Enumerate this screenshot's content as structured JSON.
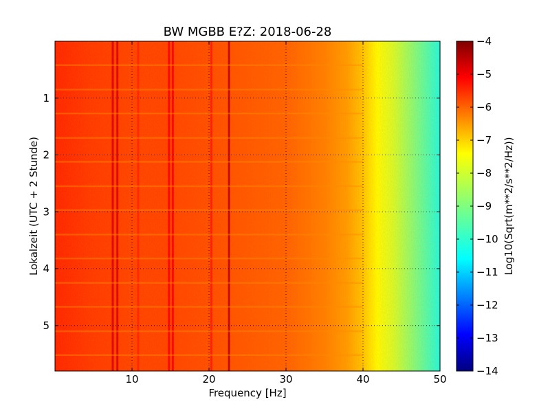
{
  "chart_data": {
    "type": "heatmap",
    "title": "BW MGBB E?Z: 2018-06-28",
    "xlabel": "Frequency [Hz]",
    "ylabel": "Lokalzeit (UTC + 2 Stunde)",
    "xlim": [
      0,
      50
    ],
    "ylim": [
      0,
      5.8
    ],
    "y_inverted": true,
    "x_ticks": [
      10,
      20,
      30,
      40,
      50
    ],
    "y_ticks": [
      1,
      2,
      3,
      4,
      5
    ],
    "grid": true,
    "colormap": "jet",
    "colorbar": {
      "label": "Log10(Sqrt(m**2/s**2/Hz))",
      "range": [
        -14,
        -4
      ],
      "ticks": [
        -4,
        -5,
        -6,
        -7,
        -8,
        -9,
        -10,
        -11,
        -12,
        -13,
        -14
      ]
    },
    "spectrum_profile": {
      "frequency_hz": [
        0,
        5,
        10,
        15,
        20,
        25,
        30,
        35,
        38,
        40,
        42,
        44,
        46,
        48,
        50
      ],
      "log_amplitude": [
        -5.6,
        -5.8,
        -5.9,
        -5.9,
        -6.0,
        -6.1,
        -6.2,
        -6.5,
        -6.8,
        -7.2,
        -7.8,
        -8.2,
        -8.8,
        -9.4,
        -10.0
      ]
    },
    "vertical_lines_hz": [
      {
        "f": 7.5,
        "level": -4.9
      },
      {
        "f": 8.1,
        "level": -4.9
      },
      {
        "f": 10.8,
        "level": -5.6
      },
      {
        "f": 14.8,
        "level": -5.2
      },
      {
        "f": 15.3,
        "level": -5.2
      },
      {
        "f": 20.3,
        "level": -5.5
      },
      {
        "f": 22.6,
        "level": -4.6
      }
    ],
    "horizontal_bands_hours": [
      0.42,
      0.85,
      1.27,
      1.7,
      2.12,
      2.55,
      2.97,
      3.4,
      3.82,
      4.25,
      4.67,
      5.1,
      5.52
    ]
  }
}
